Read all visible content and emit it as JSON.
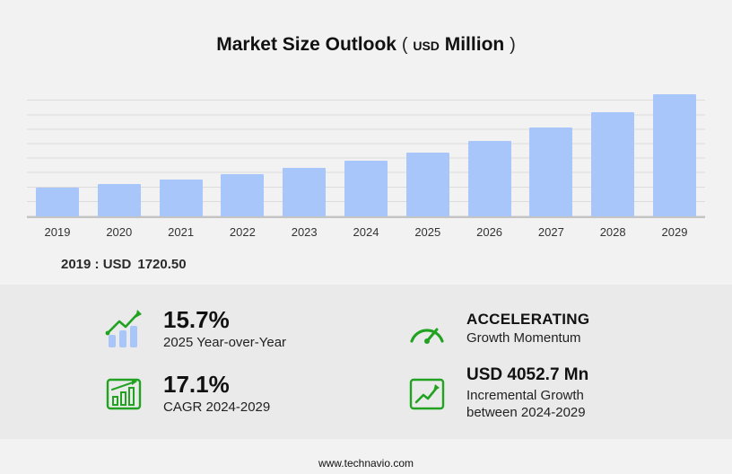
{
  "title": {
    "main": "Market Size Outlook",
    "open_paren": "(",
    "unit_currency": "USD",
    "unit_scale": "Million",
    "close_paren": ")"
  },
  "chart_data": {
    "type": "bar",
    "title": "Market Size Outlook (USD Million)",
    "categories": [
      "2019",
      "2020",
      "2021",
      "2022",
      "2023",
      "2024",
      "2025",
      "2026",
      "2027",
      "2028",
      "2029"
    ],
    "values": [
      1720.5,
      1968,
      2252,
      2576,
      2947,
      3371,
      3900,
      4581,
      5381,
      6322,
      7423
    ],
    "xlabel": "",
    "ylabel": "USD Million",
    "ylim": [
      0,
      7800
    ],
    "grid": true,
    "legend": "none",
    "bar_color": "#a9c6fa",
    "annotation": "2019 : USD 1720.50"
  },
  "annotation": {
    "prefix": "2019 : USD",
    "value": "1720.50"
  },
  "stats": {
    "yoy": {
      "value": "15.7%",
      "label": "2025 Year-over-Year"
    },
    "momentum": {
      "value": "ACCELERATING",
      "label": "Growth Momentum"
    },
    "cagr": {
      "value": "17.1%",
      "label": "CAGR 2024-2029"
    },
    "incremental": {
      "value": "USD 4052.7 Mn",
      "label_line1": "Incremental Growth",
      "label_line2": "between 2024-2029"
    }
  },
  "footer": {
    "url": "www.technavio.com"
  },
  "colors": {
    "bar": "#a9c6fa",
    "accent_green": "#21a321",
    "panel": "#eaeaea",
    "background": "#f2f2f2"
  }
}
